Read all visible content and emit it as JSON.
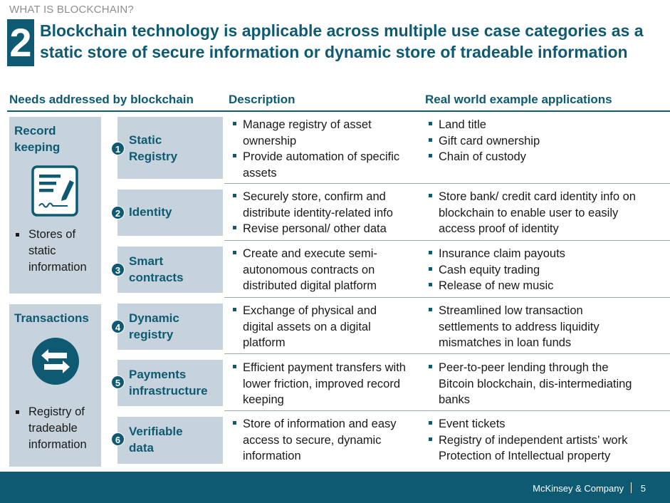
{
  "kicker": "WHAT IS BLOCKCHAIN?",
  "slide_number": "2",
  "title": "Blockchain technology is applicable across multiple use case categories as a static store of secure information or dynamic store of tradeable information",
  "headers": {
    "needs": "Needs addressed by blockchain",
    "description": "Description",
    "examples": "Real world example applications"
  },
  "categories": [
    {
      "title": "Record keeping",
      "icon": "document-edit-icon",
      "bullet": "Stores of static information"
    },
    {
      "title": "Transactions",
      "icon": "exchange-arrows-icon",
      "bullet": "Registry of tradeable information"
    }
  ],
  "rows": [
    {
      "number": "1",
      "need": "Static Registry",
      "description": [
        "Manage registry of asset ownership",
        "Provide automation of specific assets"
      ],
      "examples": [
        "Land title",
        "Gift card ownership",
        "Chain of custody"
      ]
    },
    {
      "number": "2",
      "need": "Identity",
      "description": [
        "Securely store, confirm and distribute identity-related info",
        "Revise personal/ other data"
      ],
      "examples": [
        "Store bank/ credit card identity info on blockchain to enable user to easily access proof of identity"
      ]
    },
    {
      "number": "3",
      "need": "Smart contracts",
      "description": [
        "Create and execute semi-autonomous contracts on distributed digital platform"
      ],
      "examples": [
        "Insurance claim payouts",
        "Cash equity trading",
        "Release of new music"
      ]
    },
    {
      "number": "4",
      "need": "Dynamic registry",
      "description": [
        "Exchange of physical and digital assets on a digital platform"
      ],
      "examples": [
        "Streamlined low transaction settlements to address liquidity mismatches in loan funds"
      ]
    },
    {
      "number": "5",
      "need": "Payments infrastructure",
      "description": [
        "Efficient payment transfers with lower friction, improved record keeping"
      ],
      "examples": [
        "Peer-to-peer lending through the Bitcoin blockchain, dis-intermediating banks"
      ]
    },
    {
      "number": "6",
      "need": "Verifiable data",
      "description": [
        "Store of information and easy access to secure, dynamic information"
      ],
      "examples": [
        "Event tickets",
        "Registry of independent artists’ work",
        "Protection of Intellectual property"
      ]
    }
  ],
  "footer": {
    "brand": "McKinsey & Company",
    "page": "5"
  },
  "colors": {
    "accent": "#0e5a72",
    "box": "#c6d3dc",
    "muted": "#8e8e8e"
  }
}
